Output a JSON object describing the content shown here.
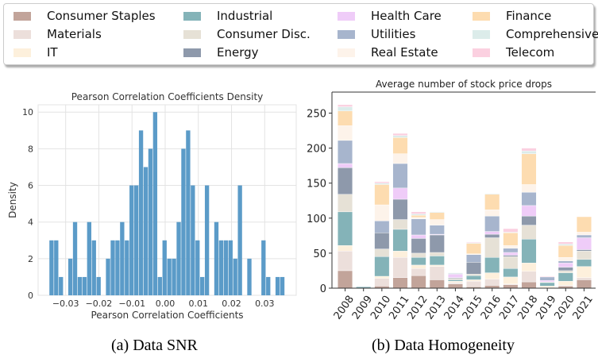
{
  "legend": {
    "placement": "top",
    "entries": [
      {
        "label": "Consumer Staples",
        "color": "#c2a49a"
      },
      {
        "label": "Materials",
        "color": "#ecdfdb"
      },
      {
        "label": "IT",
        "color": "#fdf0dc"
      },
      {
        "label": "Industrial",
        "color": "#84b3b8"
      },
      {
        "label": "Consumer Disc.",
        "color": "#e6e1d6"
      },
      {
        "label": "Energy",
        "color": "#8e99ab"
      },
      {
        "label": "Health Care",
        "color": "#efccf8"
      },
      {
        "label": "Utilities",
        "color": "#a7b5cd"
      },
      {
        "label": "Real Estate",
        "color": "#fdf3ea"
      },
      {
        "label": "Finance",
        "color": "#fddcb0"
      },
      {
        "label": "Comprehensive",
        "color": "#dcecea"
      },
      {
        "label": "Telecom",
        "color": "#fbd0e0"
      }
    ]
  },
  "captions": {
    "a": "(a) Data SNR",
    "b": "(b) Data Homogeneity"
  },
  "chart_data": [
    {
      "type": "bar",
      "subtype": "histogram",
      "title": "Pearson Correlation Coefficients Density",
      "xlabel": "Pearson Correlation Coefficients",
      "ylabel": "Density",
      "color": "#5b9bc8",
      "grid": true,
      "xlim": [
        -0.0383,
        0.0395
      ],
      "ylim": [
        0,
        10.4
      ],
      "xticks": [
        -0.03,
        -0.02,
        -0.01,
        0.0,
        0.01,
        0.02,
        0.03
      ],
      "xtick_labels": [
        "−0.03",
        "−0.02",
        "−0.01",
        "0.00",
        "0.01",
        "0.02",
        "0.03"
      ],
      "yticks": [
        0,
        2,
        4,
        6,
        8,
        10
      ],
      "ytick_labels": [
        "0",
        "2",
        "4",
        "6",
        "8",
        "10"
      ],
      "bin_start": -0.0349,
      "bin_width": 0.00142,
      "values": [
        3,
        3,
        1,
        0,
        2,
        4,
        1,
        1,
        4,
        3,
        1,
        0,
        2,
        3,
        3,
        4,
        3,
        6,
        6,
        9,
        7,
        8,
        10,
        1,
        3,
        2,
        2,
        4,
        8,
        9,
        6,
        3,
        1,
        6,
        0,
        4,
        3,
        3,
        3,
        2,
        6,
        0,
        2,
        0,
        0,
        3,
        1,
        0,
        1,
        1
      ]
    },
    {
      "type": "bar",
      "subtype": "stacked",
      "title": "Average number of stock price drops",
      "xlabel": "",
      "ylabel": "",
      "grid": false,
      "ylim": [
        0,
        280
      ],
      "yticks": [
        0,
        50,
        100,
        150,
        200,
        250
      ],
      "ytick_labels": [
        "0",
        "50",
        "100",
        "150",
        "200",
        "250"
      ],
      "categories": [
        "2008",
        "2009",
        "2010",
        "2011",
        "2012",
        "2013",
        "2014",
        "2015",
        "2016",
        "2017",
        "2018",
        "2019",
        "2020",
        "2021"
      ],
      "series": [
        {
          "name": "Consumer Staples",
          "values": [
            25,
            0,
            3,
            15,
            18,
            12,
            6,
            2,
            4,
            5,
            9,
            0,
            3,
            12
          ]
        },
        {
          "name": "Materials",
          "values": [
            28,
            0,
            11,
            29,
            10,
            19,
            2,
            8,
            9,
            1,
            15,
            1,
            1,
            3
          ]
        },
        {
          "name": "IT",
          "values": [
            8,
            0,
            3,
            9,
            5,
            2,
            2,
            2,
            9,
            10,
            12,
            2,
            6,
            16
          ]
        },
        {
          "name": "Industrial",
          "values": [
            48,
            2,
            28,
            31,
            11,
            13,
            2,
            6,
            22,
            12,
            34,
            5,
            12,
            10
          ]
        },
        {
          "name": "Consumer Disc.",
          "values": [
            25,
            0,
            11,
            14,
            6,
            5,
            2,
            2,
            28,
            17,
            20,
            1,
            3,
            12
          ]
        },
        {
          "name": "Energy",
          "values": [
            38,
            0,
            23,
            29,
            21,
            25,
            1,
            17,
            5,
            2,
            13,
            0,
            5,
            2
          ]
        },
        {
          "name": "Health Care",
          "values": [
            6,
            0,
            0,
            16,
            5,
            1,
            5,
            0,
            4,
            4,
            15,
            2,
            6,
            17
          ]
        },
        {
          "name": "Utilities",
          "values": [
            33,
            0,
            17,
            35,
            23,
            13,
            1,
            11,
            22,
            6,
            19,
            5,
            3,
            4
          ]
        },
        {
          "name": "Real Estate",
          "values": [
            21,
            0,
            23,
            14,
            2,
            8,
            0,
            1,
            9,
            4,
            11,
            0,
            5,
            4
          ]
        },
        {
          "name": "Finance",
          "values": [
            21,
            0,
            29,
            23,
            3,
            10,
            0,
            15,
            22,
            18,
            44,
            0,
            17,
            22
          ]
        },
        {
          "name": "Comprehensive",
          "values": [
            6,
            0,
            2,
            3,
            2,
            1,
            1,
            1,
            1,
            1,
            4,
            0,
            2,
            0
          ]
        },
        {
          "name": "Telecom",
          "values": [
            3,
            0,
            2,
            3,
            3,
            0,
            0,
            1,
            0,
            5,
            4,
            1,
            3,
            0
          ]
        }
      ]
    }
  ]
}
